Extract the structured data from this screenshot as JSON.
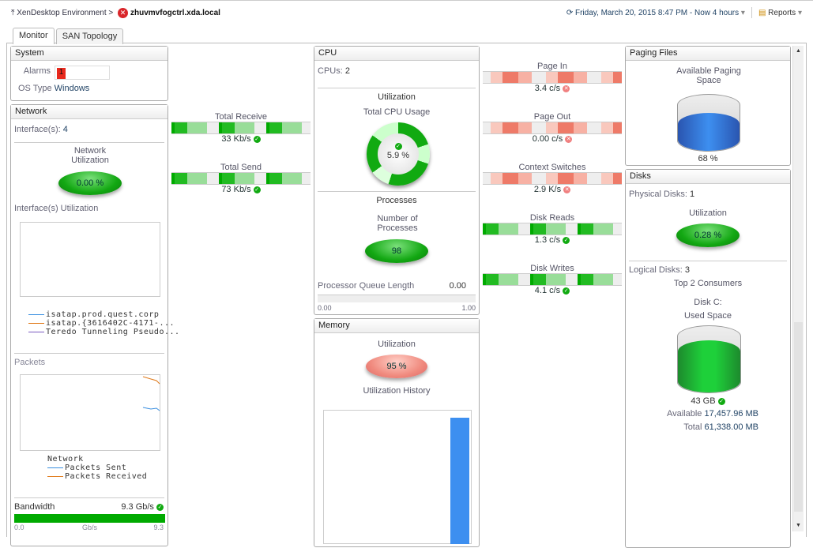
{
  "header": {
    "breadcrumb_root": "XenDesktop Environment",
    "host": "zhuvmvfogctrl.xda.local",
    "time_range": "Friday, March 20, 2015 8:47 PM - Now 4 hours",
    "reports": "Reports",
    "icons": [
      "up-icon",
      "error-icon",
      "clock-icon",
      "chevron-down-icon",
      "reports-icon"
    ]
  },
  "tabs": [
    {
      "label": "Monitor",
      "active": true
    },
    {
      "label": "SAN Topology",
      "active": false
    }
  ],
  "system": {
    "title": "System",
    "alarms_label": "Alarms",
    "alarms_count": "1",
    "os_label": "OS Type",
    "os_value": "Windows"
  },
  "network": {
    "title": "Network",
    "interfaces_label": "Interface(s):",
    "interfaces_value": "4",
    "util_label": "Network Utilization",
    "util_value": "0.00 %",
    "iface_util_label": "Interface(s) Utilization",
    "legend": [
      {
        "name": "isatap.prod.quest.corp",
        "color": "#3a8fe0"
      },
      {
        "name": "isatap.{3616402C-4171-...",
        "color": "#e07a1a"
      },
      {
        "name": "Teredo Tunneling Pseudo...",
        "color": "#7a5ac0"
      }
    ],
    "packets_label": "Packets",
    "packets_legend_title": "Network",
    "packets_legend": [
      {
        "name": "Packets Sent",
        "color": "#3a8fe0"
      },
      {
        "name": "Packets Received",
        "color": "#e07a1a"
      }
    ],
    "bandwidth_label": "Bandwidth",
    "bandwidth_value": "9.3 Gb/s",
    "bw_min": "0.0",
    "bw_unit": "Gb/s",
    "bw_max": "9.3",
    "bw_fill_percent": 100
  },
  "flows_left": [
    {
      "label": "Total Receive",
      "value": "33 Kb/s",
      "status": "ok"
    },
    {
      "label": "Total Send",
      "value": "73 Kb/s",
      "status": "ok"
    }
  ],
  "cpu": {
    "title": "CPU",
    "cpus_label": "CPUs:",
    "cpus_value": "2",
    "util_heading": "Utilization",
    "usage_label": "Total CPU Usage",
    "usage_value": "5.9 %",
    "proc_heading": "Processes",
    "nproc_label": "Number of Processes",
    "nproc_value": "98",
    "pql_label": "Processor Queue Length",
    "pql_value": "0.00",
    "pql_min": "0.00",
    "pql_max": "1.00"
  },
  "memory": {
    "title": "Memory",
    "util_label": "Utilization",
    "util_value": "95 %",
    "history_label": "Utilization History"
  },
  "flows_right": [
    {
      "label": "Page In",
      "value": "3.4 c/s",
      "status": "critical"
    },
    {
      "label": "Page Out",
      "value": "0.00 c/s",
      "status": "critical"
    },
    {
      "label": "Context Switches",
      "value": "2.9 K/s",
      "status": "critical"
    },
    {
      "label": "Disk Reads",
      "value": "1.3 c/s",
      "status": "ok"
    },
    {
      "label": "Disk Writes",
      "value": "4.1 c/s",
      "status": "ok"
    }
  ],
  "paging": {
    "title": "Paging Files",
    "label": "Available Paging Space",
    "value": "68 %",
    "fill_percent": 68
  },
  "disks": {
    "title": "Disks",
    "physical_label": "Physical Disks:",
    "physical_value": "1",
    "util_label": "Utilization",
    "util_value": "0.28 %",
    "logical_label": "Logical Disks:",
    "logical_value": "3",
    "top_label": "Top 2 Consumers",
    "disk_name": "Disk C:",
    "used_label": "Used Space",
    "used_value": "43 GB",
    "available_label": "Available",
    "available_value": "17,457.96 MB",
    "total_label": "Total",
    "total_value": "61,338.00 MB",
    "fill_percent": 70
  },
  "colors": {
    "ok": "#11aa11",
    "critical": "#f08080",
    "accent": "#246"
  }
}
